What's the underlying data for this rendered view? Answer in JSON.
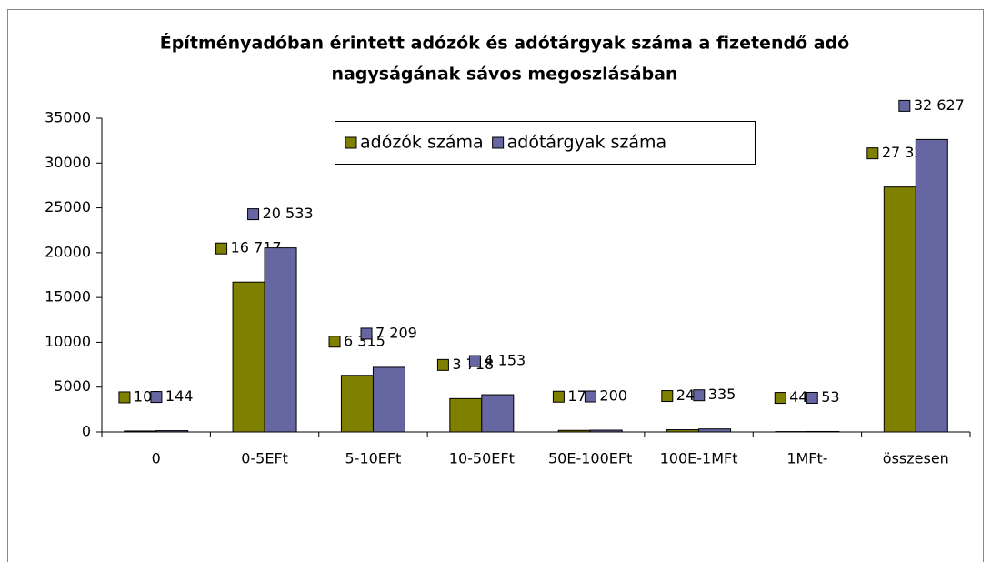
{
  "chart_data": {
    "type": "bar",
    "title": [
      "Építményadóban érintett adózók és adótárgyak száma a fizetendő adó",
      "nagyságának sávos megoszlásában"
    ],
    "categories": [
      "0",
      "0-5EFt",
      "5-10EFt",
      "10-50EFt",
      "50E-100EFt",
      "100E-1MFt",
      "1MFt-",
      "összesen"
    ],
    "series": [
      {
        "name": "adózók száma",
        "color": "#808000",
        "values": [
          105,
          16717,
          6315,
          3718,
          177,
          249,
          44,
          27325
        ],
        "value_labels": [
          "105",
          "16 717",
          "6 315",
          "3 718",
          "177",
          "249",
          "44",
          "27 325"
        ]
      },
      {
        "name": "adótárgyak száma",
        "color": "#6666a3",
        "values": [
          144,
          20533,
          7209,
          4153,
          200,
          335,
          53,
          32627
        ],
        "value_labels": [
          "144",
          "20 533",
          "7 209",
          "4 153",
          "200",
          "335",
          "53",
          "32 627"
        ]
      }
    ],
    "ylim": [
      0,
      35000
    ],
    "yticks": [
      0,
      5000,
      10000,
      15000,
      20000,
      25000,
      30000,
      35000
    ],
    "grid": false,
    "legend": "top"
  }
}
